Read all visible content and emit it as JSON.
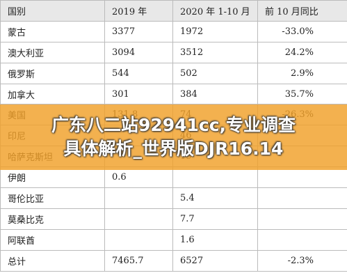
{
  "table": {
    "header": [
      "国别",
      "2019 年",
      "2020 年 1-10 月",
      "前 10 月同比"
    ],
    "rows": [
      [
        "蒙古",
        "3377",
        "1972",
        "-33.0%"
      ],
      [
        "澳大利亚",
        "3094",
        "3512",
        "24.2%"
      ],
      [
        "俄罗斯",
        "544",
        "502",
        "2.9%"
      ],
      [
        "加拿大",
        "301",
        "384",
        "35.7%"
      ],
      [
        "美国",
        "131.8",
        "74",
        "-26.3%"
      ],
      [
        "印尼",
        "",
        "46",
        ""
      ],
      [
        "哈萨克斯坦",
        "",
        "15",
        ""
      ],
      [
        "伊朗",
        "0.6",
        "",
        ""
      ],
      [
        "哥伦比亚",
        "",
        "5.4",
        ""
      ],
      [
        "莫桑比克",
        "",
        "7.7",
        ""
      ],
      [
        "阿联酋",
        "",
        "1.6",
        ""
      ],
      [
        "总计",
        "7465.7",
        "6527",
        "-2.3%"
      ]
    ]
  },
  "banner": {
    "lines": [
      "广东八二站92941cc,专业调查",
      "具体解析_世界版DJR16.14"
    ]
  }
}
